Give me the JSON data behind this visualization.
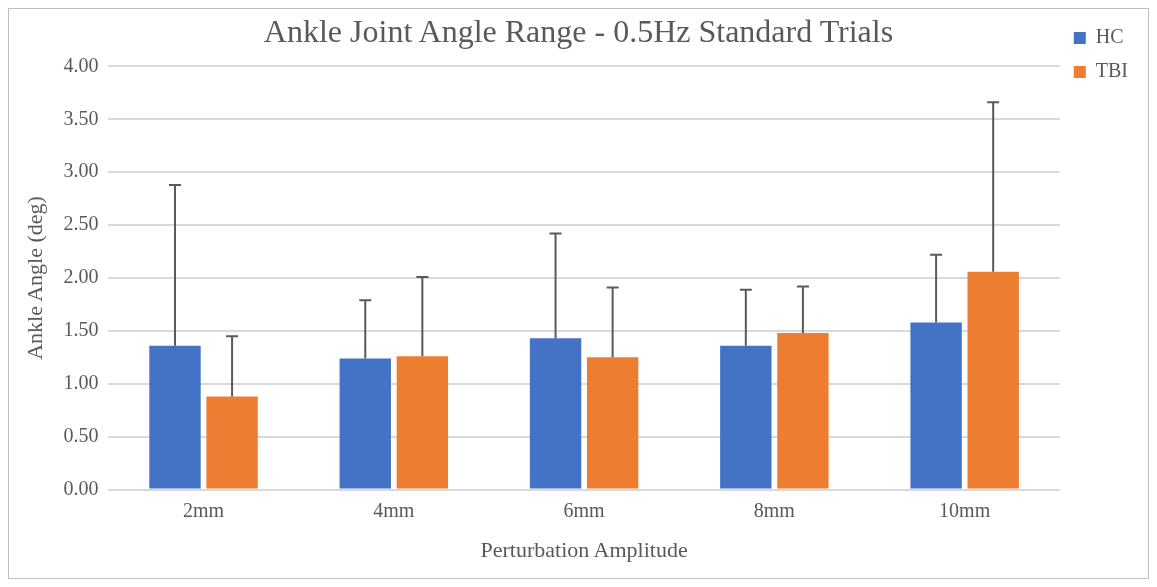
{
  "chart_data": {
    "type": "bar",
    "title": "Ankle Joint Angle Range - 0.5Hz Standard Trials",
    "xlabel": "Perturbation Amplitude",
    "ylabel": "Ankle Angle (deg)",
    "categories": [
      "2mm",
      "4mm",
      "6mm",
      "8mm",
      "10mm"
    ],
    "series": [
      {
        "name": "HC",
        "color": "#4472c4",
        "values": [
          1.36,
          1.24,
          1.43,
          1.36,
          1.58
        ],
        "errors": [
          [
            1.36,
            2.88
          ],
          [
            1.24,
            1.79
          ],
          [
            1.43,
            2.42
          ],
          [
            1.36,
            1.89
          ],
          [
            1.58,
            2.22
          ]
        ]
      },
      {
        "name": "TBI",
        "color": "#ed7d31",
        "values": [
          0.88,
          1.26,
          1.25,
          1.48,
          2.06
        ],
        "errors": [
          [
            0.88,
            1.45
          ],
          [
            1.26,
            2.01
          ],
          [
            1.25,
            1.91
          ],
          [
            1.48,
            1.92
          ],
          [
            2.06,
            3.66
          ]
        ]
      }
    ],
    "ylim": [
      0,
      4
    ],
    "yticks": [
      {
        "value": 0,
        "label": "0.00"
      },
      {
        "value": 0.5,
        "label": "0.50"
      },
      {
        "value": 1,
        "label": "1.00"
      },
      {
        "value": 1.5,
        "label": "1.50"
      },
      {
        "value": 2,
        "label": "2.00"
      },
      {
        "value": 2.5,
        "label": "2.50"
      },
      {
        "value": 3,
        "label": "3.00"
      },
      {
        "value": 3.5,
        "label": "3.50"
      },
      {
        "value": 4,
        "label": "4.00"
      }
    ],
    "grid": "y",
    "legend": "top right"
  }
}
